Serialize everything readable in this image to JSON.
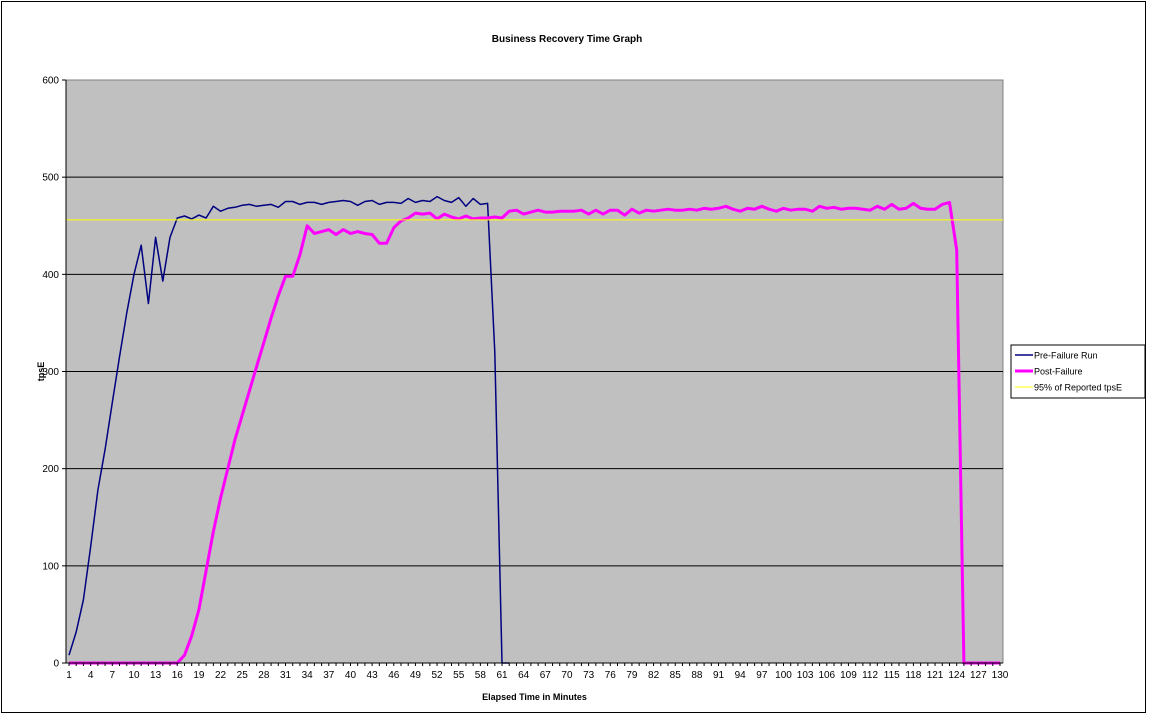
{
  "chart_data": {
    "type": "line",
    "title": "Business Recovery Time Graph",
    "xlabel": "Elapsed Time in Minutes",
    "ylabel": "tpsE",
    "ylim": [
      0,
      600
    ],
    "yticks": [
      0,
      100,
      200,
      300,
      400,
      500,
      600
    ],
    "xlim": [
      1,
      130
    ],
    "xticks": [
      1,
      4,
      7,
      10,
      13,
      16,
      19,
      22,
      25,
      28,
      31,
      34,
      37,
      40,
      43,
      46,
      49,
      52,
      55,
      58,
      61,
      64,
      67,
      70,
      73,
      76,
      79,
      82,
      85,
      88,
      91,
      94,
      97,
      100,
      103,
      106,
      109,
      112,
      115,
      118,
      121,
      124,
      127,
      130
    ],
    "grid": "horizontal",
    "background_color": "#c0c0c0",
    "legend_position": "right",
    "series": [
      {
        "name": "Pre-Failure Run",
        "color": "#000080",
        "stroke": "thin",
        "x": [
          1,
          2,
          3,
          4,
          5,
          6,
          7,
          8,
          9,
          10,
          11,
          12,
          13,
          14,
          15,
          16,
          17,
          18,
          19,
          20,
          21,
          22,
          23,
          24,
          25,
          26,
          27,
          28,
          29,
          30,
          31,
          32,
          33,
          34,
          35,
          36,
          37,
          38,
          39,
          40,
          41,
          42,
          43,
          44,
          45,
          46,
          47,
          48,
          49,
          50,
          51,
          52,
          53,
          54,
          55,
          56,
          57,
          58,
          59,
          60,
          61,
          62
        ],
        "values": [
          8,
          32,
          65,
          120,
          178,
          220,
          268,
          315,
          360,
          400,
          430,
          370,
          438,
          393,
          438,
          458,
          460,
          457,
          461,
          458,
          470,
          465,
          468,
          469,
          471,
          472,
          470,
          471,
          472,
          469,
          475,
          475,
          472,
          474,
          474,
          472,
          474,
          475,
          476,
          475,
          471,
          475,
          476,
          472,
          474,
          474,
          473,
          478,
          474,
          476,
          475,
          480,
          476,
          474,
          479,
          470,
          478,
          472,
          473,
          320,
          0,
          0
        ]
      },
      {
        "name": "Post-Failure",
        "color": "#ff00ff",
        "stroke": "thick",
        "x": [
          1,
          2,
          3,
          4,
          5,
          6,
          7,
          8,
          9,
          10,
          11,
          12,
          13,
          14,
          15,
          16,
          17,
          18,
          19,
          20,
          21,
          22,
          23,
          24,
          25,
          26,
          27,
          28,
          29,
          30,
          31,
          32,
          33,
          34,
          35,
          36,
          37,
          38,
          39,
          40,
          41,
          42,
          43,
          44,
          45,
          46,
          47,
          48,
          49,
          50,
          51,
          52,
          53,
          54,
          55,
          56,
          57,
          58,
          59,
          60,
          61,
          62,
          63,
          64,
          65,
          66,
          67,
          68,
          69,
          70,
          71,
          72,
          73,
          74,
          75,
          76,
          77,
          78,
          79,
          80,
          81,
          82,
          83,
          84,
          85,
          86,
          87,
          88,
          89,
          90,
          91,
          92,
          93,
          94,
          95,
          96,
          97,
          98,
          99,
          100,
          101,
          102,
          103,
          104,
          105,
          106,
          107,
          108,
          109,
          110,
          111,
          112,
          113,
          114,
          115,
          116,
          117,
          118,
          119,
          120,
          121,
          122,
          123,
          124,
          125,
          126,
          127,
          128,
          129,
          130
        ],
        "values": [
          0,
          0,
          0,
          0,
          0,
          0,
          0,
          0,
          0,
          0,
          0,
          0,
          0,
          0,
          0,
          0,
          8,
          28,
          55,
          95,
          135,
          170,
          200,
          230,
          255,
          280,
          305,
          330,
          355,
          378,
          398,
          398,
          420,
          450,
          442,
          444,
          446,
          441,
          446,
          442,
          444,
          442,
          441,
          432,
          432,
          448,
          455,
          458,
          463,
          462,
          463,
          457,
          462,
          459,
          457,
          460,
          457,
          458,
          458,
          459,
          458,
          465,
          466,
          462,
          464,
          466,
          464,
          464,
          465,
          465,
          465,
          466,
          462,
          466,
          462,
          466,
          466,
          461,
          467,
          463,
          466,
          465,
          466,
          467,
          466,
          466,
          467,
          466,
          468,
          467,
          468,
          470,
          467,
          465,
          468,
          467,
          470,
          467,
          465,
          468,
          466,
          467,
          467,
          465,
          470,
          468,
          469,
          467,
          468,
          468,
          467,
          466,
          470,
          467,
          472,
          467,
          468,
          473,
          468,
          467,
          467,
          472,
          474,
          425,
          0,
          0,
          0,
          0,
          0,
          0
        ]
      },
      {
        "name": "95% of Reported tpsE",
        "color": "#ffff00",
        "stroke": "hairline",
        "constant": 456
      }
    ]
  }
}
